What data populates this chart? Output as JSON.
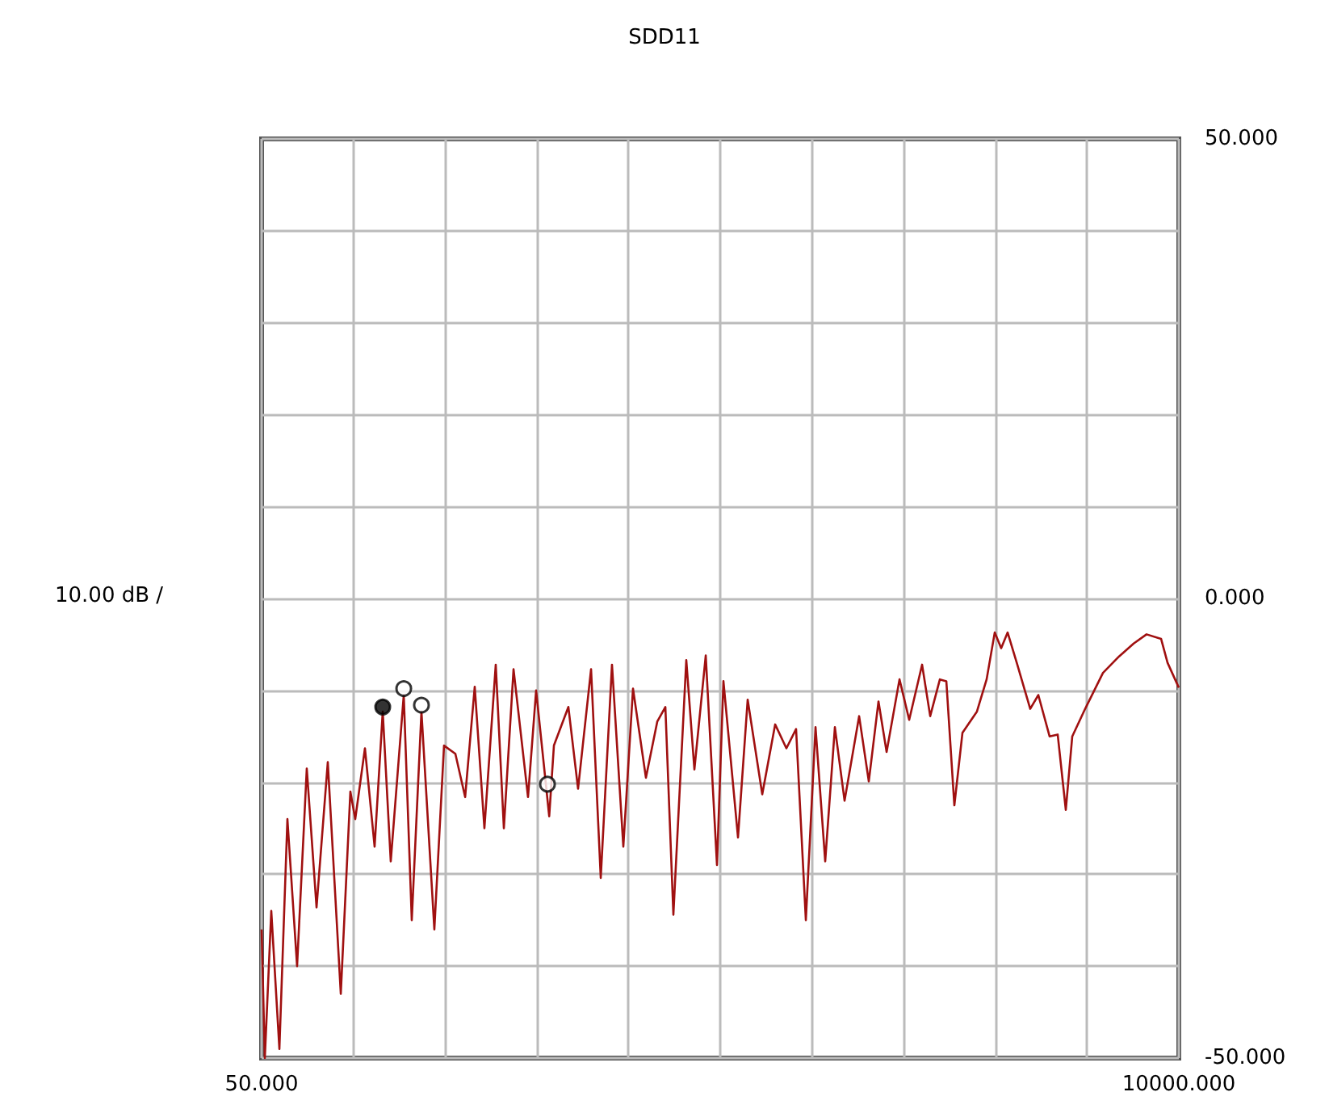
{
  "chart_data": {
    "type": "line",
    "title": "SDD11",
    "ylabel": "10.00 dB /",
    "xlim": [
      50,
      10000
    ],
    "xticks": [
      {
        "value": 50,
        "label": "50.000"
      },
      {
        "value": 1045,
        "label": null
      },
      {
        "value": 2040,
        "label": null
      },
      {
        "value": 3035,
        "label": null
      },
      {
        "value": 4030,
        "label": null
      },
      {
        "value": 5025,
        "label": null
      },
      {
        "value": 6020,
        "label": null
      },
      {
        "value": 7015,
        "label": null
      },
      {
        "value": 8010,
        "label": null
      },
      {
        "value": 9005,
        "label": null
      },
      {
        "value": 10000,
        "label": "10000.000"
      }
    ],
    "ylim": [
      -50,
      50
    ],
    "yticks": [
      {
        "value": -50,
        "label": "-50.000"
      },
      {
        "value": -40,
        "label": null
      },
      {
        "value": -30,
        "label": null
      },
      {
        "value": -20,
        "label": null
      },
      {
        "value": -10,
        "label": null
      },
      {
        "value": 0,
        "label": "0.000"
      },
      {
        "value": 10,
        "label": null
      },
      {
        "value": 20,
        "label": null
      },
      {
        "value": 30,
        "label": null
      },
      {
        "value": 40,
        "label": null
      },
      {
        "value": 50,
        "label": "50.000"
      }
    ],
    "grid": true,
    "series": [
      {
        "color": "#a01010",
        "marker": "none",
        "line_style": "solid",
        "x": [
          50,
          85,
          155,
          243,
          330,
          435,
          540,
          646,
          768,
          909,
          1013,
          1066,
          1171,
          1276,
          1364,
          1451,
          1592,
          1679,
          1784,
          1924,
          2029,
          2152,
          2258,
          2362,
          2467,
          2590,
          2678,
          2783,
          2940,
          3028,
          3170,
          3221,
          3378,
          3483,
          3624,
          3729,
          3851,
          3974,
          4079,
          4219,
          4342,
          4430,
          4517,
          4657,
          4745,
          4868,
          4990,
          5060,
          5218,
          5323,
          5481,
          5621,
          5743,
          5848,
          5954,
          6059,
          6164,
          6269,
          6374,
          6532,
          6637,
          6742,
          6830,
          6970,
          7075,
          7215,
          7303,
          7408,
          7478,
          7565,
          7653,
          7810,
          7915,
          8003,
          8073,
          8143,
          8248,
          8388,
          8476,
          8598,
          8686,
          8774,
          8844,
          8984,
          9177,
          9352,
          9510,
          9650,
          9808,
          9878,
          10000
        ],
        "values": [
          -36,
          -50,
          -34,
          -49,
          -24,
          -40,
          -18.5,
          -33.6,
          -17.8,
          -43,
          -21,
          -24,
          -16.3,
          -27,
          -12.3,
          -28.6,
          -10.5,
          -35,
          -12.3,
          -36,
          -16,
          -16.9,
          -21.6,
          -9.6,
          -25,
          -7.2,
          -25,
          -7.7,
          -21.6,
          -10,
          -23.7,
          -16,
          -11.8,
          -20.7,
          -7.7,
          -30.4,
          -7.2,
          -27,
          -9.8,
          -19.5,
          -13.4,
          -11.8,
          -34.4,
          -6.7,
          -18.6,
          -6.2,
          -29,
          -9,
          -26,
          -11,
          -21.3,
          -13.7,
          -16.3,
          -14.2,
          -35,
          -14,
          -28.6,
          -14,
          -22,
          -12.8,
          -19.9,
          -11.2,
          -16.7,
          -8.8,
          -13.2,
          -7.2,
          -12.8,
          -8.8,
          -9,
          -22.5,
          -14.6,
          -12.3,
          -8.8,
          -3.7,
          -5.4,
          -3.7,
          -7.2,
          -12,
          -10.5,
          -15,
          -14.8,
          -23,
          -15,
          -12,
          -8.1,
          -6.3,
          -4.9,
          -3.9,
          -4.4,
          -7,
          -9.7
        ]
      },
      {
        "type": "scatter",
        "marker": "circle",
        "color": "#000000",
        "colors": [
          "#000000",
          "#ffffff",
          "#ffffff",
          "#ffffff"
        ],
        "x": [
          1364,
          1592,
          1784,
          3151
        ],
        "values": [
          -11.8,
          -9.8,
          -11.6,
          -20.2
        ]
      }
    ]
  }
}
